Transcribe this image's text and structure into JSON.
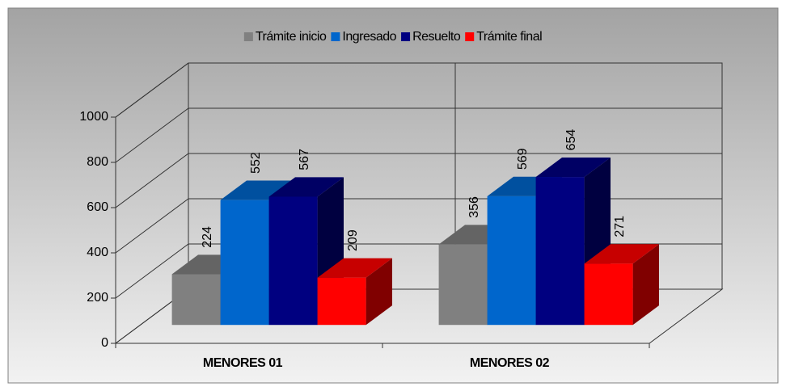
{
  "chart_data": {
    "type": "bar3d",
    "categories": [
      "MENORES 01",
      "MENORES 02"
    ],
    "series": [
      {
        "name": "Trámite inicio",
        "color": "#808080",
        "values": [
          224,
          356
        ]
      },
      {
        "name": "Ingresado",
        "color": "#0066cc",
        "values": [
          552,
          569
        ]
      },
      {
        "name": "Resuelto",
        "color": "#000080",
        "values": [
          567,
          654
        ]
      },
      {
        "name": "Trámite final",
        "color": "#ff0000",
        "values": [
          209,
          271
        ]
      }
    ],
    "ylim": [
      0,
      1000
    ],
    "yticks": [
      0,
      200,
      400,
      600,
      800,
      1000
    ],
    "grid": true,
    "legend": "top"
  }
}
